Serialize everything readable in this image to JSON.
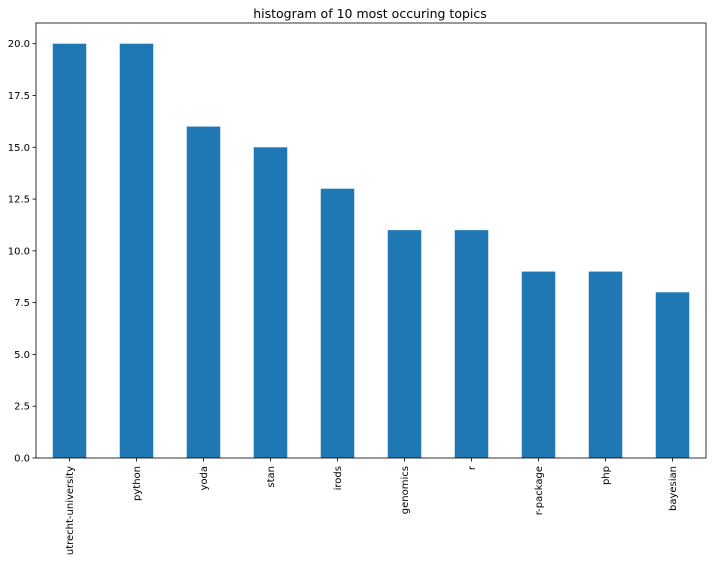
{
  "chart_data": {
    "type": "bar",
    "title": "histogram of 10 most occuring topics",
    "xlabel": "",
    "ylabel": "",
    "categories": [
      "utrecht-university",
      "python",
      "yoda",
      "stan",
      "irods",
      "genomics",
      "r",
      "r-package",
      "php",
      "bayesian"
    ],
    "values": [
      20,
      20,
      16,
      15,
      13,
      11,
      11,
      9,
      9,
      8
    ],
    "ylim": [
      0,
      21
    ],
    "yticks": [
      "0.0",
      "2.5",
      "5.0",
      "7.5",
      "10.0",
      "12.5",
      "15.0",
      "17.5",
      "20.0"
    ],
    "bar_color": "#1f77b4",
    "grid": false,
    "legend": "none"
  }
}
